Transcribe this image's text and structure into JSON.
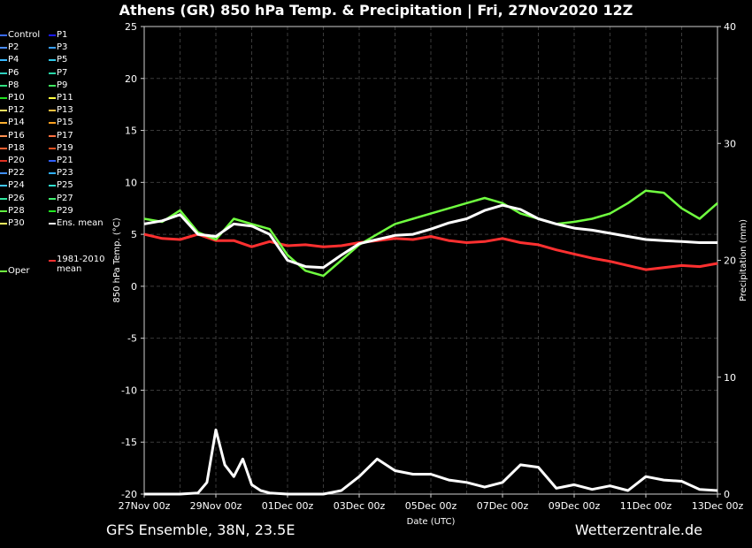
{
  "title": "Athens  (GR)  850 hPa Temp. & Precipitation | Fri, 27Nov2020 12Z",
  "footer": {
    "model": "GFS Ensemble, 38N, 23.5E",
    "source": "Wetterzentrale.de"
  },
  "legend": {
    "members": [
      {
        "name": "Control",
        "color": "#3a6cff"
      },
      {
        "name": "P1",
        "color": "#1a1aff"
      },
      {
        "name": "P2",
        "color": "#4a8cff"
      },
      {
        "name": "P3",
        "color": "#3aa0ff"
      },
      {
        "name": "P4",
        "color": "#38b8ff"
      },
      {
        "name": "P5",
        "color": "#30c8e8"
      },
      {
        "name": "P6",
        "color": "#30d0c0"
      },
      {
        "name": "P7",
        "color": "#28d8a8"
      },
      {
        "name": "P8",
        "color": "#30e080"
      },
      {
        "name": "P9",
        "color": "#40e860"
      },
      {
        "name": "P10",
        "color": "#20e020"
      },
      {
        "name": "P11",
        "color": "#ffff40"
      },
      {
        "name": "P12",
        "color": "#ffe060"
      },
      {
        "name": "P13",
        "color": "#ffc040"
      },
      {
        "name": "P14",
        "color": "#ffb030"
      },
      {
        "name": "P15",
        "color": "#ffa020"
      },
      {
        "name": "P16",
        "color": "#ff9050"
      },
      {
        "name": "P17",
        "color": "#ff7040"
      },
      {
        "name": "P18",
        "color": "#ff6030"
      },
      {
        "name": "P19",
        "color": "#e05020"
      },
      {
        "name": "P20",
        "color": "#e03020"
      },
      {
        "name": "P21",
        "color": "#3060ff"
      },
      {
        "name": "P22",
        "color": "#4090ff"
      },
      {
        "name": "P23",
        "color": "#30b0ff"
      },
      {
        "name": "P24",
        "color": "#40c8ff"
      },
      {
        "name": "P25",
        "color": "#30e0d0"
      },
      {
        "name": "P26",
        "color": "#30e8a0"
      },
      {
        "name": "P27",
        "color": "#40f070"
      },
      {
        "name": "P28",
        "color": "#60f040"
      },
      {
        "name": "P29",
        "color": "#20e820"
      },
      {
        "name": "P30",
        "color": "#ffff60"
      },
      {
        "name": "Ens. mean",
        "color": "#ffffff"
      }
    ],
    "clim_label": "1981-2010 mean",
    "clim_color": "#ff3030",
    "oper_label": "Oper",
    "oper_color": "#70ff40"
  },
  "chart_data": {
    "type": "line",
    "xlabel": "Date (UTC)",
    "ylabel": "850 hPa Temp. (°C)",
    "y2label": "Precipitation (mm)",
    "ylim": [
      -20,
      25
    ],
    "y2lim": [
      0,
      40
    ],
    "yticks": [
      -20,
      -15,
      -10,
      -5,
      0,
      5,
      10,
      15,
      20,
      25
    ],
    "y2ticks": [
      0,
      10,
      20,
      30,
      40
    ],
    "x_start": "27Nov 00z",
    "x_range_days": [
      0,
      16
    ],
    "xtick_labels": [
      "27Nov 00z",
      "29Nov 00z",
      "01Dec 00z",
      "03Dec 00z",
      "05Dec 00z",
      "07Dec 00z",
      "09Dec 00z",
      "11Dec 00z",
      "13Dec 00z"
    ],
    "grid": true,
    "temp_mean": [
      {
        "x": 0.0,
        "y": 6.0
      },
      {
        "x": 0.5,
        "y": 6.3
      },
      {
        "x": 1.0,
        "y": 6.9
      },
      {
        "x": 1.5,
        "y": 5.0
      },
      {
        "x": 2.0,
        "y": 4.8
      },
      {
        "x": 2.5,
        "y": 6.0
      },
      {
        "x": 3.0,
        "y": 5.8
      },
      {
        "x": 3.5,
        "y": 5.0
      },
      {
        "x": 4.0,
        "y": 2.5
      },
      {
        "x": 4.5,
        "y": 1.9
      },
      {
        "x": 5.0,
        "y": 1.8
      },
      {
        "x": 5.5,
        "y": 3.0
      },
      {
        "x": 6.0,
        "y": 4.1
      },
      {
        "x": 6.5,
        "y": 4.5
      },
      {
        "x": 7.0,
        "y": 4.9
      },
      {
        "x": 7.5,
        "y": 5.0
      },
      {
        "x": 8.0,
        "y": 5.5
      },
      {
        "x": 8.5,
        "y": 6.1
      },
      {
        "x": 9.0,
        "y": 6.5
      },
      {
        "x": 9.5,
        "y": 7.3
      },
      {
        "x": 10.0,
        "y": 7.8
      },
      {
        "x": 10.5,
        "y": 7.4
      },
      {
        "x": 11.0,
        "y": 6.5
      },
      {
        "x": 11.5,
        "y": 6.0
      },
      {
        "x": 12.0,
        "y": 5.6
      },
      {
        "x": 12.5,
        "y": 5.4
      },
      {
        "x": 13.0,
        "y": 5.1
      },
      {
        "x": 13.5,
        "y": 4.8
      },
      {
        "x": 14.0,
        "y": 4.5
      },
      {
        "x": 14.5,
        "y": 4.4
      },
      {
        "x": 15.0,
        "y": 4.3
      },
      {
        "x": 15.5,
        "y": 4.2
      },
      {
        "x": 16.0,
        "y": 4.2
      }
    ],
    "temp_climate_mean": [
      {
        "x": 0.0,
        "y": 5.0
      },
      {
        "x": 0.5,
        "y": 4.6
      },
      {
        "x": 1.0,
        "y": 4.5
      },
      {
        "x": 1.5,
        "y": 5.0
      },
      {
        "x": 2.0,
        "y": 4.4
      },
      {
        "x": 2.5,
        "y": 4.4
      },
      {
        "x": 3.0,
        "y": 3.8
      },
      {
        "x": 3.5,
        "y": 4.3
      },
      {
        "x": 4.0,
        "y": 3.9
      },
      {
        "x": 4.5,
        "y": 4.0
      },
      {
        "x": 5.0,
        "y": 3.8
      },
      {
        "x": 5.5,
        "y": 3.9
      },
      {
        "x": 6.0,
        "y": 4.2
      },
      {
        "x": 6.5,
        "y": 4.4
      },
      {
        "x": 7.0,
        "y": 4.6
      },
      {
        "x": 7.5,
        "y": 4.5
      },
      {
        "x": 8.0,
        "y": 4.8
      },
      {
        "x": 8.5,
        "y": 4.4
      },
      {
        "x": 9.0,
        "y": 4.2
      },
      {
        "x": 9.5,
        "y": 4.3
      },
      {
        "x": 10.0,
        "y": 4.6
      },
      {
        "x": 10.5,
        "y": 4.2
      },
      {
        "x": 11.0,
        "y": 4.0
      },
      {
        "x": 11.5,
        "y": 3.5
      },
      {
        "x": 12.0,
        "y": 3.1
      },
      {
        "x": 12.5,
        "y": 2.7
      },
      {
        "x": 13.0,
        "y": 2.4
      },
      {
        "x": 13.5,
        "y": 2.0
      },
      {
        "x": 14.0,
        "y": 1.6
      },
      {
        "x": 14.5,
        "y": 1.8
      },
      {
        "x": 15.0,
        "y": 2.0
      },
      {
        "x": 15.5,
        "y": 1.9
      },
      {
        "x": 16.0,
        "y": 2.2
      }
    ],
    "temp_oper": [
      {
        "x": 0.0,
        "y": 6.5
      },
      {
        "x": 0.5,
        "y": 6.2
      },
      {
        "x": 1.0,
        "y": 7.3
      },
      {
        "x": 1.5,
        "y": 5.2
      },
      {
        "x": 2.0,
        "y": 4.5
      },
      {
        "x": 2.5,
        "y": 6.5
      },
      {
        "x": 3.0,
        "y": 6.0
      },
      {
        "x": 3.5,
        "y": 5.5
      },
      {
        "x": 4.0,
        "y": 3.0
      },
      {
        "x": 4.5,
        "y": 1.5
      },
      {
        "x": 5.0,
        "y": 1.0
      },
      {
        "x": 5.5,
        "y": 2.5
      },
      {
        "x": 6.0,
        "y": 4.0
      },
      {
        "x": 6.5,
        "y": 5.0
      },
      {
        "x": 7.0,
        "y": 6.0
      },
      {
        "x": 7.5,
        "y": 6.5
      },
      {
        "x": 8.0,
        "y": 7.0
      },
      {
        "x": 8.5,
        "y": 7.5
      },
      {
        "x": 9.0,
        "y": 8.0
      },
      {
        "x": 9.5,
        "y": 8.5
      },
      {
        "x": 10.0,
        "y": 8.0
      },
      {
        "x": 10.5,
        "y": 7.0
      },
      {
        "x": 11.0,
        "y": 6.5
      },
      {
        "x": 11.5,
        "y": 6.0
      },
      {
        "x": 12.0,
        "y": 6.2
      },
      {
        "x": 12.5,
        "y": 6.5
      },
      {
        "x": 13.0,
        "y": 7.0
      },
      {
        "x": 13.5,
        "y": 8.0
      },
      {
        "x": 14.0,
        "y": 9.2
      },
      {
        "x": 14.5,
        "y": 9.0
      },
      {
        "x": 15.0,
        "y": 7.5
      },
      {
        "x": 15.5,
        "y": 6.5
      },
      {
        "x": 16.0,
        "y": 8.0
      }
    ],
    "precip_mean": [
      {
        "x": 0.0,
        "y": 0.0
      },
      {
        "x": 1.0,
        "y": 0.0
      },
      {
        "x": 1.5,
        "y": 0.1
      },
      {
        "x": 1.75,
        "y": 1.0
      },
      {
        "x": 2.0,
        "y": 5.5
      },
      {
        "x": 2.25,
        "y": 2.5
      },
      {
        "x": 2.5,
        "y": 1.5
      },
      {
        "x": 2.75,
        "y": 3.0
      },
      {
        "x": 3.0,
        "y": 0.8
      },
      {
        "x": 3.25,
        "y": 0.3
      },
      {
        "x": 3.5,
        "y": 0.1
      },
      {
        "x": 4.0,
        "y": 0.0
      },
      {
        "x": 5.0,
        "y": 0.0
      },
      {
        "x": 5.5,
        "y": 0.3
      },
      {
        "x": 6.0,
        "y": 1.5
      },
      {
        "x": 6.5,
        "y": 3.0
      },
      {
        "x": 7.0,
        "y": 2.0
      },
      {
        "x": 7.5,
        "y": 1.7
      },
      {
        "x": 8.0,
        "y": 1.7
      },
      {
        "x": 8.5,
        "y": 1.2
      },
      {
        "x": 9.0,
        "y": 1.0
      },
      {
        "x": 9.5,
        "y": 0.6
      },
      {
        "x": 10.0,
        "y": 1.0
      },
      {
        "x": 10.5,
        "y": 2.5
      },
      {
        "x": 11.0,
        "y": 2.3
      },
      {
        "x": 11.5,
        "y": 0.5
      },
      {
        "x": 12.0,
        "y": 0.8
      },
      {
        "x": 12.5,
        "y": 0.4
      },
      {
        "x": 13.0,
        "y": 0.7
      },
      {
        "x": 13.5,
        "y": 0.3
      },
      {
        "x": 14.0,
        "y": 1.5
      },
      {
        "x": 14.5,
        "y": 1.2
      },
      {
        "x": 15.0,
        "y": 1.1
      },
      {
        "x": 15.5,
        "y": 0.4
      },
      {
        "x": 16.0,
        "y": 0.3
      }
    ]
  }
}
